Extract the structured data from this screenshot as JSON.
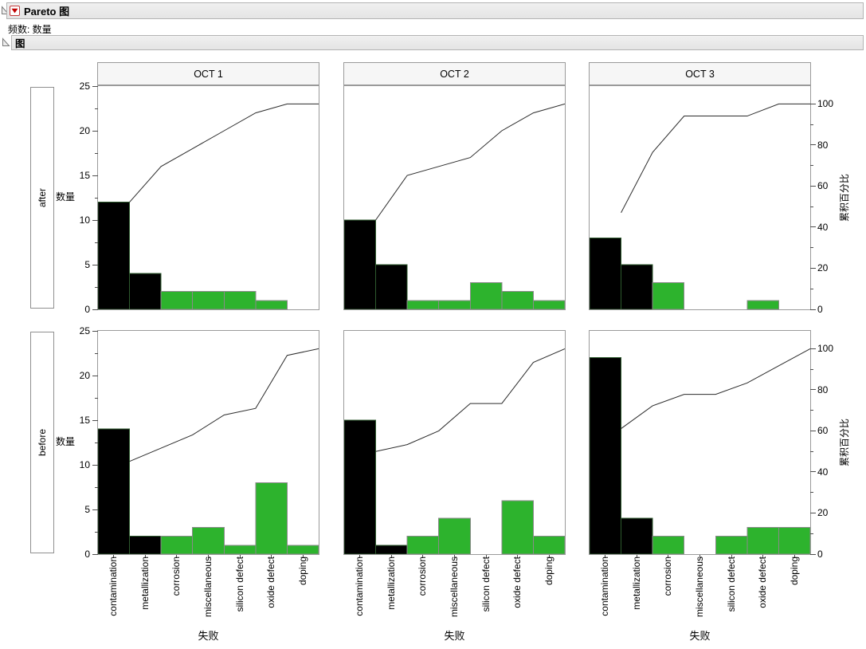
{
  "chart_data": {
    "type": "bar",
    "subtype": "pareto-grid",
    "title": "Pareto 图",
    "frequency_label": "频数: 数量",
    "section_label": "图",
    "col_groups": [
      "OCT 1",
      "OCT 2",
      "OCT 3"
    ],
    "row_groups": [
      "after",
      "before"
    ],
    "categories": [
      "contamination",
      "metallization",
      "corrosion",
      "miscellaneous",
      "silicon defect",
      "oxide defect",
      "doping"
    ],
    "cells": [
      {
        "row": "after",
        "col": "OCT 1",
        "values": [
          12,
          4,
          2,
          2,
          2,
          1,
          0
        ],
        "total": 23,
        "cumulative_percent": [
          52.2,
          69.6,
          78.3,
          87.0,
          95.7,
          100,
          100
        ]
      },
      {
        "row": "after",
        "col": "OCT 2",
        "values": [
          10,
          5,
          1,
          1,
          3,
          2,
          1
        ],
        "total": 23,
        "cumulative_percent": [
          43.5,
          65.2,
          69.6,
          73.9,
          87.0,
          95.7,
          100
        ]
      },
      {
        "row": "after",
        "col": "OCT 3",
        "values": [
          8,
          5,
          3,
          0,
          0,
          1,
          0
        ],
        "total": 17,
        "cumulative_percent": [
          47.1,
          76.5,
          94.1,
          94.1,
          94.1,
          100,
          100
        ]
      },
      {
        "row": "before",
        "col": "OCT 1",
        "values": [
          14,
          2,
          2,
          3,
          1,
          8,
          1
        ],
        "total": 31,
        "cumulative_percent": [
          45.2,
          51.6,
          58.1,
          67.7,
          71.0,
          96.8,
          100
        ]
      },
      {
        "row": "before",
        "col": "OCT 2",
        "values": [
          15,
          1,
          2,
          4,
          0,
          6,
          2
        ],
        "total": 30,
        "cumulative_percent": [
          50.0,
          53.3,
          60.0,
          73.3,
          73.3,
          93.3,
          100
        ]
      },
      {
        "row": "before",
        "col": "OCT 3",
        "values": [
          22,
          4,
          2,
          0,
          2,
          3,
          3
        ],
        "total": 36,
        "cumulative_percent": [
          61.1,
          72.2,
          77.8,
          77.8,
          83.3,
          91.7,
          100
        ]
      }
    ],
    "ylabel_left": "数量",
    "ylabel_right": "累积百分比",
    "xlabel": "失败",
    "ylim_left": [
      0,
      25
    ],
    "left_ticks": [
      0,
      5,
      10,
      15,
      20,
      25
    ],
    "right_ticks": [
      0,
      20,
      40,
      60,
      80,
      100
    ],
    "percent_full_scale_count": 23,
    "n_black_bars": 2,
    "grid": false,
    "legend_position": "none",
    "colors": {
      "bar_black": "#000000",
      "bar_green": "#2db32d",
      "green_bar_stroke": "#8a8a8a",
      "black_bar_stroke": "#2d5a2d",
      "cumulative_line": "#2b2b2b",
      "plot_border": "#9a9a9a",
      "header_fill": "#e9e9e9"
    }
  }
}
